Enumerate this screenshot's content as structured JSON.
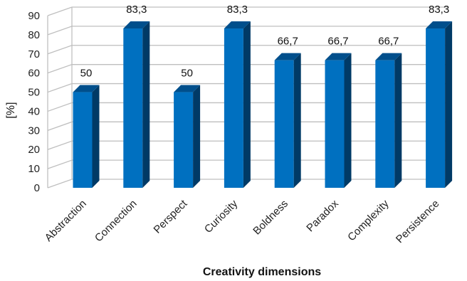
{
  "chart_data": {
    "type": "bar",
    "style": "3d-column",
    "categories": [
      "Abstraction",
      "Connection",
      "Perspect",
      "Curiosity",
      "Boldness",
      "Paradox",
      "Complexity",
      "Persistence"
    ],
    "values": [
      50,
      83.3,
      50,
      83.3,
      66.7,
      66.7,
      66.7,
      83.3
    ],
    "data_labels": [
      "50",
      "83,3",
      "50",
      "83,3",
      "66,7",
      "66,7",
      "66,7",
      "83,3"
    ],
    "xlabel": "Creativity dimensions",
    "ylabel": "[%]",
    "ylim": [
      0,
      90
    ],
    "yticks": [
      "0",
      "10",
      "20",
      "30",
      "40",
      "50",
      "60",
      "70",
      "80",
      "90"
    ],
    "grid": true,
    "legend": "none",
    "colors": {
      "bar_front": "#0070C0",
      "bar_side": "#003A66",
      "bar_top": "#004F8C",
      "grid": "#BFBFBF",
      "wall": "#D9D9D9"
    }
  }
}
